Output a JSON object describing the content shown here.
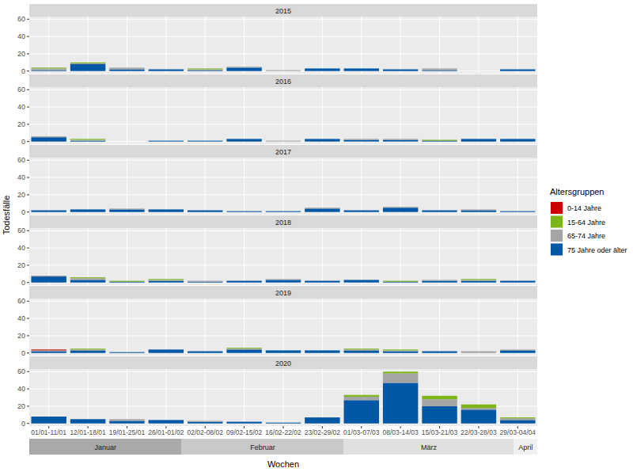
{
  "chart_data": {
    "type": "bar",
    "stacked": true,
    "grid": true,
    "legend": "right",
    "xlabel": "Wochen",
    "ylabel": "Todesfälle",
    "legend_title": "Altersgruppen",
    "ylim": [
      -3,
      63
    ],
    "yticks": [
      0,
      20,
      40,
      60
    ],
    "categories": [
      "01/01-11/01",
      "12/01-18/01",
      "19/01-25/01",
      "26/01-01/02",
      "02/02-08/02",
      "09/02-15/02",
      "16/02-22/02",
      "23/02-29/02",
      "01/03-07/03",
      "08/03-14/03",
      "15/03-21/03",
      "22/03-28/03",
      "29/03-04/04"
    ],
    "months": [
      {
        "label": "Januar",
        "span": 3.9
      },
      {
        "label": "Februar",
        "span": 4.15
      },
      {
        "label": "März",
        "span": 4.35
      },
      {
        "label": "April",
        "span": 0.6
      }
    ],
    "series": [
      {
        "name": "0-14 Jahre",
        "color": "#cc0000"
      },
      {
        "name": "15-64 Jahre",
        "color": "#7cb518"
      },
      {
        "name": "65-74 Jahre",
        "color": "#a5a5a5"
      },
      {
        "name": "75 Jahre oder älter",
        "color": "#0057a5"
      }
    ],
    "panels": [
      {
        "title": "2015",
        "series": [
          {
            "values": [
              0,
              0,
              0,
              0,
              0,
              0,
              0,
              0,
              0,
              0,
              0,
              0,
              0
            ]
          },
          {
            "values": [
              1,
              1,
              0,
              0,
              1,
              0,
              0,
              0,
              0,
              0,
              0,
              0,
              0
            ]
          },
          {
            "values": [
              2,
              1,
              2,
              0,
              1,
              1,
              1,
              0,
              0,
              0,
              2,
              0,
              0
            ]
          },
          {
            "values": [
              1,
              8,
              2,
              2,
              1,
              4,
              0,
              3,
              3,
              2,
              1,
              0,
              2
            ]
          }
        ]
      },
      {
        "title": "2016",
        "series": [
          {
            "values": [
              0,
              0,
              0,
              0,
              0,
              0,
              0,
              0,
              0,
              0,
              0,
              0,
              0
            ]
          },
          {
            "values": [
              0,
              1,
              0,
              0,
              0,
              0,
              0,
              0,
              0,
              0,
              1,
              0,
              0
            ]
          },
          {
            "values": [
              1,
              1,
              0,
              0,
              0,
              0,
              1,
              0,
              1,
              1,
              0,
              0,
              0
            ]
          },
          {
            "values": [
              5,
              1,
              0,
              1,
              1,
              3,
              0,
              3,
              2,
              2,
              1,
              3,
              3
            ]
          }
        ]
      },
      {
        "title": "2017",
        "series": [
          {
            "values": [
              0,
              0,
              0,
              0,
              0,
              0,
              0,
              0,
              0,
              0,
              0,
              0,
              0
            ]
          },
          {
            "values": [
              0,
              0,
              0,
              0,
              0,
              0,
              0,
              0,
              0,
              0,
              0,
              0,
              0
            ]
          },
          {
            "values": [
              0,
              0,
              1,
              0,
              0,
              0,
              0,
              1,
              0,
              1,
              0,
              1,
              0
            ]
          },
          {
            "values": [
              2,
              3,
              3,
              3,
              2,
              1,
              1,
              4,
              2,
              5,
              2,
              2,
              1
            ]
          }
        ]
      },
      {
        "title": "2018",
        "series": [
          {
            "values": [
              0,
              0,
              0,
              0,
              0,
              0,
              0,
              0,
              0,
              0,
              0,
              0,
              0
            ]
          },
          {
            "values": [
              0,
              1,
              1,
              1,
              0,
              0,
              0,
              0,
              0,
              1,
              0,
              1,
              0
            ]
          },
          {
            "values": [
              1,
              2,
              0,
              1,
              1,
              0,
              1,
              0,
              0,
              0,
              1,
              1,
              0
            ]
          },
          {
            "values": [
              7,
              3,
              1,
              2,
              1,
              2,
              3,
              2,
              3,
              1,
              2,
              2,
              2
            ]
          }
        ]
      },
      {
        "title": "2019",
        "series": [
          {
            "values": [
              1,
              0,
              0,
              0,
              0,
              0,
              0,
              0,
              0,
              0,
              0,
              0,
              0
            ]
          },
          {
            "values": [
              0,
              1,
              0,
              0,
              0,
              1,
              0,
              0,
              1,
              1,
              0,
              0,
              0
            ]
          },
          {
            "values": [
              1,
              1,
              0,
              0,
              0,
              1,
              0,
              0,
              1,
              1,
              0,
              2,
              1
            ]
          },
          {
            "values": [
              2,
              3,
              1,
              4,
              2,
              4,
              3,
              3,
              3,
              2,
              2,
              0,
              3
            ]
          }
        ]
      },
      {
        "title": "2020",
        "series": [
          {
            "values": [
              0,
              0,
              0,
              0,
              0,
              0,
              0,
              0,
              0,
              0,
              0,
              0,
              0
            ]
          },
          {
            "values": [
              0,
              0,
              0,
              0,
              0,
              0,
              0,
              0,
              2,
              2,
              4,
              4,
              1
            ]
          },
          {
            "values": [
              0,
              0,
              2,
              0,
              1,
              0,
              0,
              0,
              4,
              11,
              8,
              2,
              2
            ]
          },
          {
            "values": [
              8,
              5,
              3,
              4,
              2,
              2,
              1,
              7,
              27,
              47,
              20,
              16,
              4
            ]
          }
        ]
      }
    ]
  }
}
